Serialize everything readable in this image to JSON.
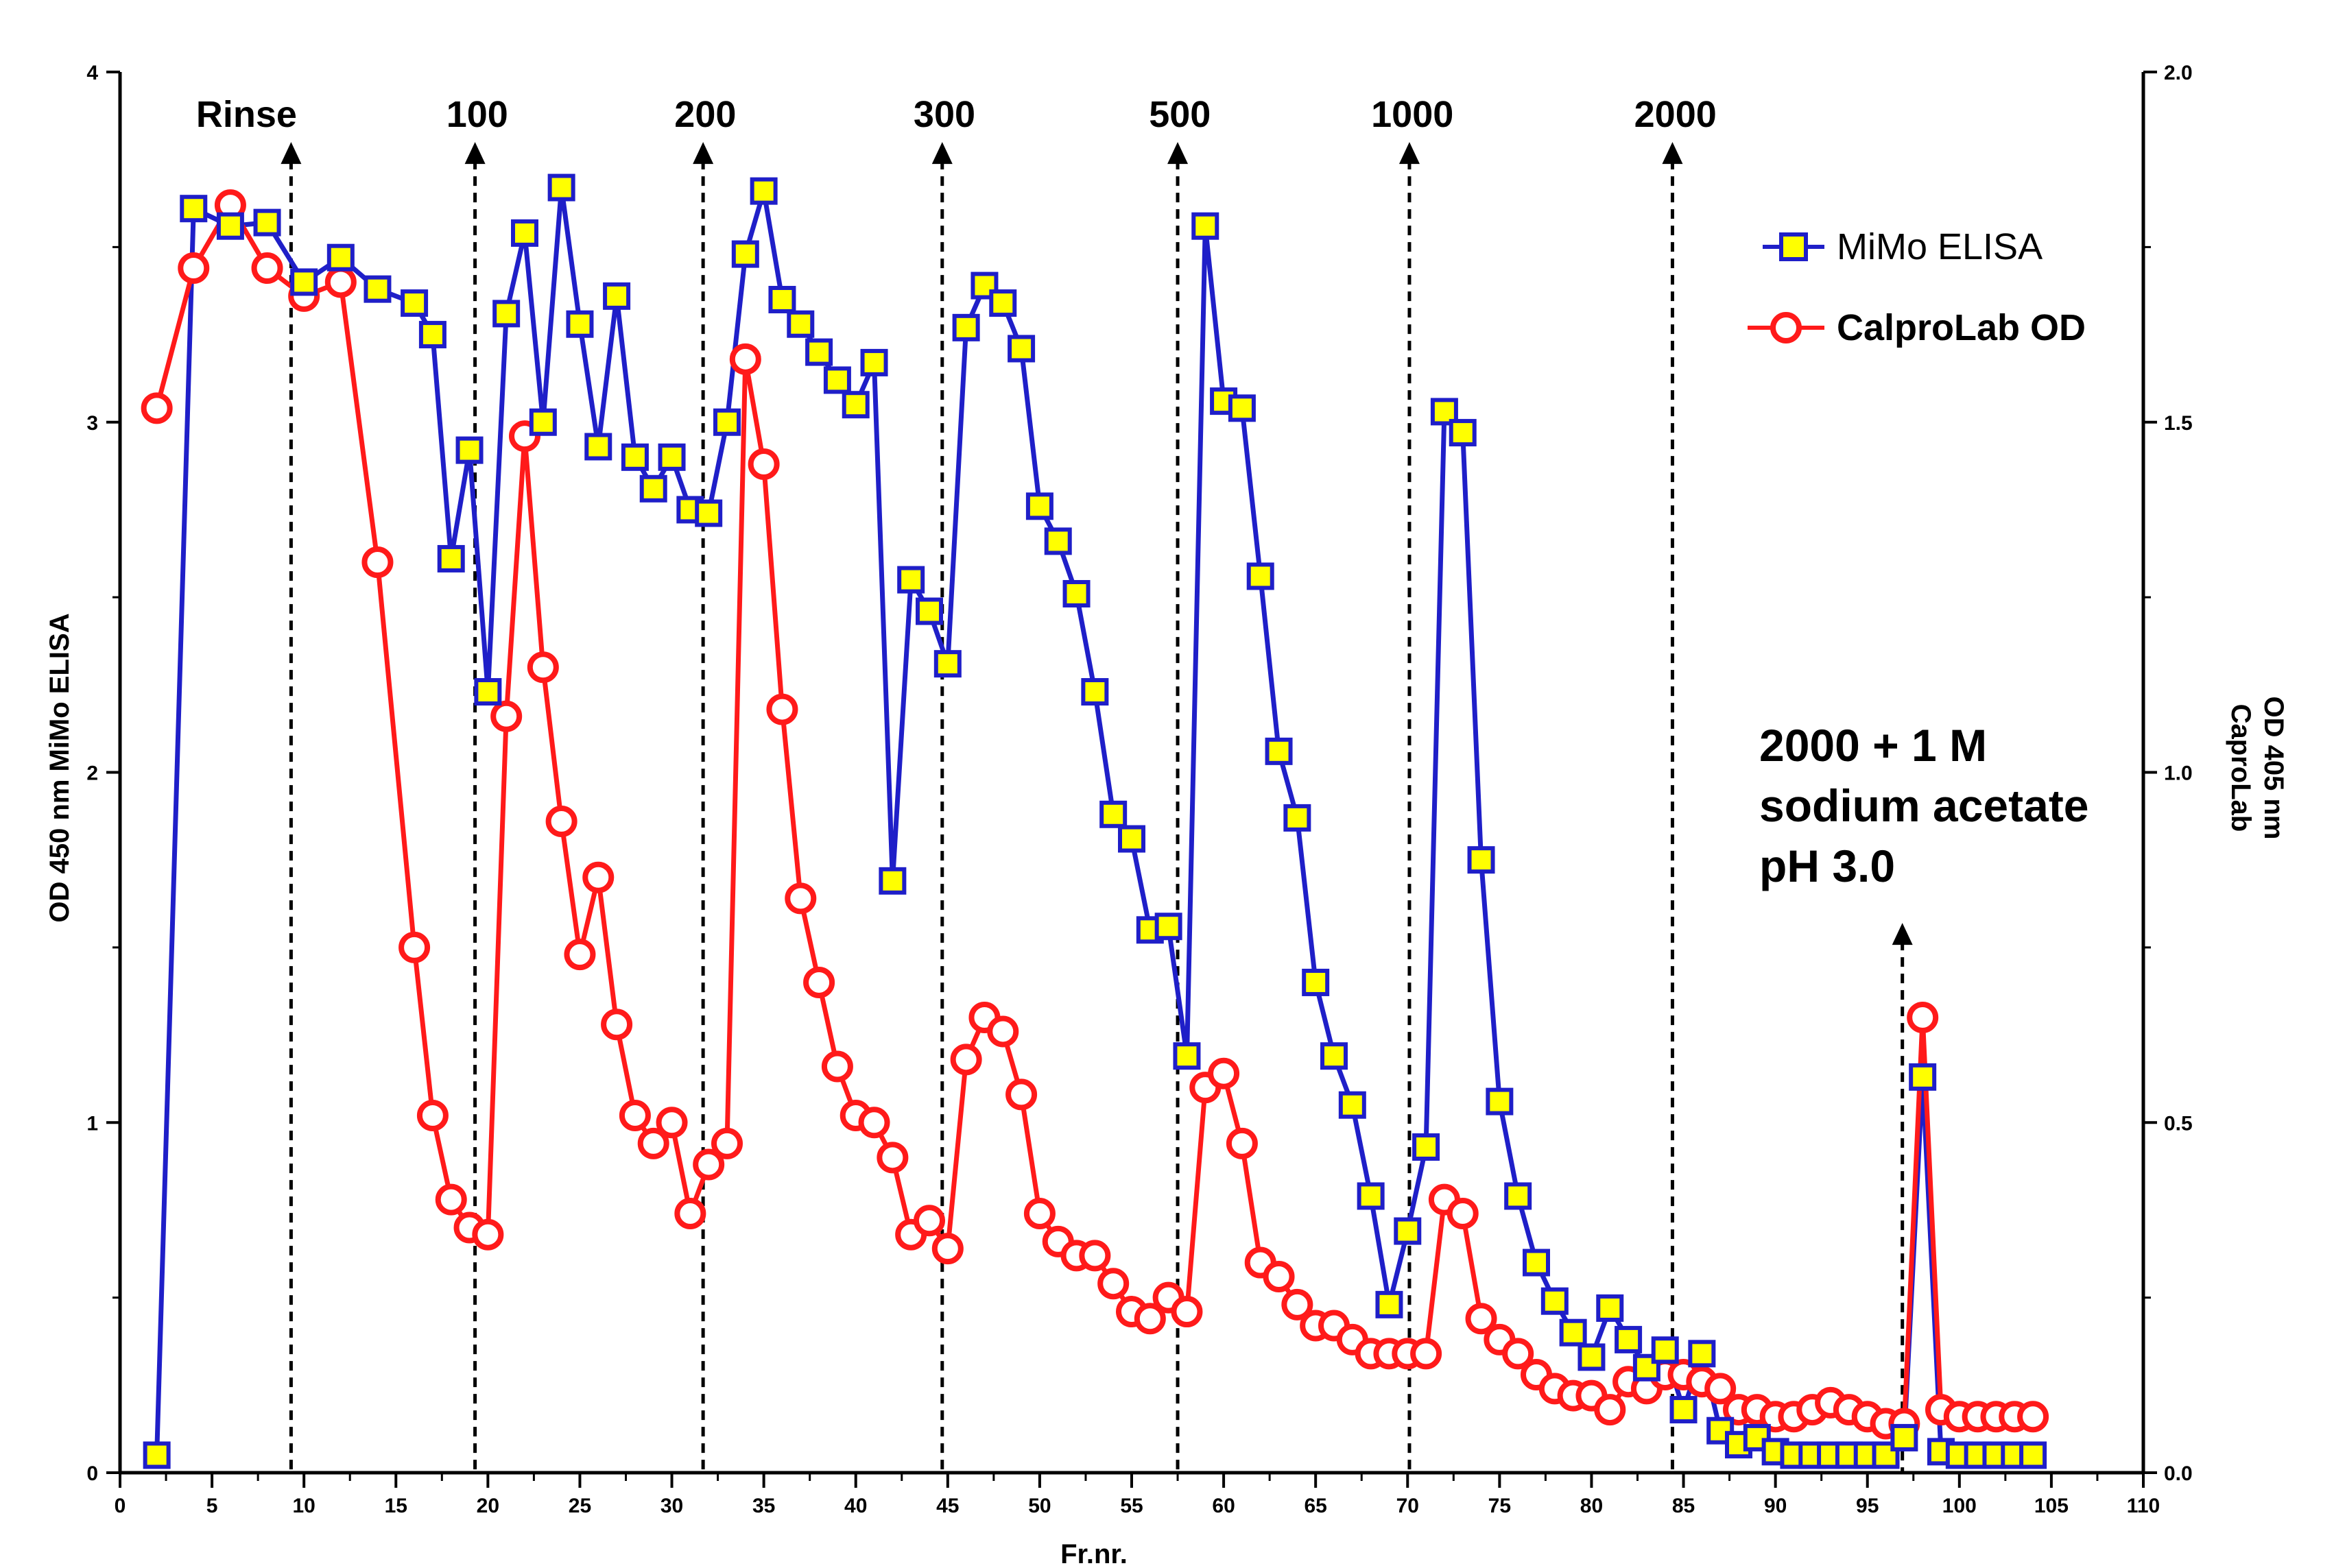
{
  "chart_data": {
    "type": "line",
    "xlabel": "Fr.nr.",
    "ylabel_left": "OD 450 nm MiMo ELISA",
    "ylabel_right_line1": "OD 405 nm",
    "ylabel_right_line2": "CaproLab",
    "xlim": [
      0,
      110
    ],
    "ylim_left": [
      0,
      4
    ],
    "ylim_right": [
      0,
      2
    ],
    "x_ticks": [
      "0",
      "5",
      "10",
      "15",
      "20",
      "25",
      "30",
      "35",
      "40",
      "45",
      "50",
      "55",
      "60",
      "65",
      "70",
      "75",
      "80",
      "85",
      "90",
      "95",
      "100",
      "105",
      "110"
    ],
    "y_left_ticks": [
      "0",
      "1",
      "2",
      "3",
      "4"
    ],
    "y_right_ticks": [
      "0.0",
      "0.5",
      "1.0",
      "1.5",
      "2.0"
    ],
    "series": [
      {
        "name": "MiMo ELISA",
        "axis": "left",
        "color": "#1f1fc8",
        "marker": "square",
        "marker_fill": "#ffff00",
        "points": [
          [
            2,
            0.05
          ],
          [
            4,
            3.61
          ],
          [
            6,
            3.56
          ],
          [
            8,
            3.57
          ],
          [
            10,
            3.4
          ],
          [
            12,
            3.47
          ],
          [
            14,
            3.38
          ],
          [
            16,
            3.34
          ],
          [
            17,
            3.25
          ],
          [
            18,
            2.61
          ],
          [
            19,
            2.92
          ],
          [
            20,
            2.23
          ],
          [
            21,
            3.31
          ],
          [
            22,
            3.54
          ],
          [
            23,
            3.0
          ],
          [
            24,
            3.67
          ],
          [
            25,
            3.28
          ],
          [
            26,
            2.93
          ],
          [
            27,
            3.36
          ],
          [
            28,
            2.9
          ],
          [
            29,
            2.81
          ],
          [
            30,
            2.9
          ],
          [
            31,
            2.75
          ],
          [
            32,
            2.74
          ],
          [
            33,
            3.0
          ],
          [
            34,
            3.48
          ],
          [
            35,
            3.66
          ],
          [
            36,
            3.35
          ],
          [
            37,
            3.28
          ],
          [
            38,
            3.2
          ],
          [
            39,
            3.12
          ],
          [
            40,
            3.05
          ],
          [
            41,
            3.17
          ],
          [
            42,
            1.69
          ],
          [
            43,
            2.55
          ],
          [
            44,
            2.46
          ],
          [
            45,
            2.31
          ],
          [
            46,
            3.27
          ],
          [
            47,
            3.39
          ],
          [
            48,
            3.34
          ],
          [
            49,
            3.21
          ],
          [
            50,
            2.76
          ],
          [
            51,
            2.66
          ],
          [
            52,
            2.51
          ],
          [
            53,
            2.23
          ],
          [
            54,
            1.88
          ],
          [
            55,
            1.81
          ],
          [
            56,
            1.55
          ],
          [
            57,
            1.56
          ],
          [
            58,
            1.19
          ],
          [
            59,
            3.56
          ],
          [
            60,
            3.06
          ],
          [
            61,
            3.04
          ],
          [
            62,
            2.56
          ],
          [
            63,
            2.06
          ],
          [
            64,
            1.87
          ],
          [
            65,
            1.4
          ],
          [
            66,
            1.19
          ],
          [
            67,
            1.05
          ],
          [
            68,
            0.79
          ],
          [
            69,
            0.48
          ],
          [
            70,
            0.69
          ],
          [
            71,
            0.93
          ],
          [
            72,
            3.03
          ],
          [
            73,
            2.97
          ],
          [
            74,
            1.75
          ],
          [
            75,
            1.06
          ],
          [
            76,
            0.79
          ],
          [
            77,
            0.6
          ],
          [
            78,
            0.49
          ],
          [
            79,
            0.4
          ],
          [
            80,
            0.33
          ],
          [
            81,
            0.47
          ],
          [
            82,
            0.38
          ],
          [
            83,
            0.3
          ],
          [
            84,
            0.35
          ],
          [
            85,
            0.18
          ],
          [
            86,
            0.34
          ],
          [
            87,
            0.12
          ],
          [
            88,
            0.08
          ],
          [
            89,
            0.1
          ],
          [
            90,
            0.06
          ],
          [
            91,
            0.05
          ],
          [
            92,
            0.05
          ],
          [
            93,
            0.05
          ],
          [
            94,
            0.05
          ],
          [
            95,
            0.05
          ],
          [
            96,
            0.05
          ],
          [
            97,
            0.1
          ],
          [
            98,
            1.13
          ],
          [
            99,
            0.06
          ],
          [
            100,
            0.05
          ],
          [
            101,
            0.05
          ],
          [
            102,
            0.05
          ],
          [
            103,
            0.05
          ],
          [
            104,
            0.05
          ]
        ]
      },
      {
        "name": "CalproLab OD",
        "axis": "right",
        "color": "#ff1a1a",
        "marker": "circle",
        "marker_fill": "#ffffff",
        "points": [
          [
            2,
            1.52
          ],
          [
            4,
            1.72
          ],
          [
            6,
            1.81
          ],
          [
            8,
            1.72
          ],
          [
            10,
            1.68
          ],
          [
            12,
            1.7
          ],
          [
            14,
            1.3
          ],
          [
            16,
            0.75
          ],
          [
            17,
            0.51
          ],
          [
            18,
            0.39
          ],
          [
            19,
            0.35
          ],
          [
            20,
            0.34
          ],
          [
            21,
            1.08
          ],
          [
            22,
            1.48
          ],
          [
            23,
            1.15
          ],
          [
            24,
            0.93
          ],
          [
            25,
            0.74
          ],
          [
            26,
            0.85
          ],
          [
            27,
            0.64
          ],
          [
            28,
            0.51
          ],
          [
            29,
            0.47
          ],
          [
            30,
            0.5
          ],
          [
            31,
            0.37
          ],
          [
            32,
            0.44
          ],
          [
            33,
            0.47
          ],
          [
            34,
            1.59
          ],
          [
            35,
            1.44
          ],
          [
            36,
            1.09
          ],
          [
            37,
            0.82
          ],
          [
            38,
            0.7
          ],
          [
            39,
            0.58
          ],
          [
            40,
            0.51
          ],
          [
            41,
            0.5
          ],
          [
            42,
            0.45
          ],
          [
            43,
            0.34
          ],
          [
            44,
            0.36
          ],
          [
            45,
            0.32
          ],
          [
            46,
            0.59
          ],
          [
            47,
            0.65
          ],
          [
            48,
            0.63
          ],
          [
            49,
            0.54
          ],
          [
            50,
            0.37
          ],
          [
            51,
            0.33
          ],
          [
            52,
            0.31
          ],
          [
            53,
            0.31
          ],
          [
            54,
            0.27
          ],
          [
            55,
            0.23
          ],
          [
            56,
            0.22
          ],
          [
            57,
            0.25
          ],
          [
            58,
            0.23
          ],
          [
            59,
            0.55
          ],
          [
            60,
            0.57
          ],
          [
            61,
            0.47
          ],
          [
            62,
            0.3
          ],
          [
            63,
            0.28
          ],
          [
            64,
            0.24
          ],
          [
            65,
            0.21
          ],
          [
            66,
            0.21
          ],
          [
            67,
            0.19
          ],
          [
            68,
            0.17
          ],
          [
            69,
            0.17
          ],
          [
            70,
            0.17
          ],
          [
            71,
            0.17
          ],
          [
            72,
            0.39
          ],
          [
            73,
            0.37
          ],
          [
            74,
            0.22
          ],
          [
            75,
            0.19
          ],
          [
            76,
            0.17
          ],
          [
            77,
            0.14
          ],
          [
            78,
            0.12
          ],
          [
            79,
            0.11
          ],
          [
            80,
            0.11
          ],
          [
            81,
            0.09
          ],
          [
            82,
            0.13
          ],
          [
            83,
            0.12
          ],
          [
            84,
            0.14
          ],
          [
            85,
            0.14
          ],
          [
            86,
            0.13
          ],
          [
            87,
            0.12
          ],
          [
            88,
            0.09
          ],
          [
            89,
            0.09
          ],
          [
            90,
            0.08
          ],
          [
            91,
            0.08
          ],
          [
            92,
            0.09
          ],
          [
            93,
            0.1
          ],
          [
            94,
            0.09
          ],
          [
            95,
            0.08
          ],
          [
            96,
            0.07
          ],
          [
            97,
            0.07
          ],
          [
            98,
            0.65
          ],
          [
            99,
            0.09
          ],
          [
            100,
            0.08
          ],
          [
            101,
            0.08
          ],
          [
            102,
            0.08
          ],
          [
            103,
            0.08
          ],
          [
            104,
            0.08
          ]
        ]
      }
    ],
    "annotations": [
      {
        "label": "Rinse",
        "x": 9.3,
        "y_top": 3.8,
        "y_bottom": 0
      },
      {
        "label": "100",
        "x": 19.3,
        "y_top": 3.8,
        "y_bottom": 0
      },
      {
        "label": "200",
        "x": 31.7,
        "y_top": 3.8,
        "y_bottom": 0
      },
      {
        "label": "300",
        "x": 44.7,
        "y_top": 3.8,
        "y_bottom": 0
      },
      {
        "label": "500",
        "x": 57.5,
        "y_top": 3.8,
        "y_bottom": 0
      },
      {
        "label": "1000",
        "x": 70.1,
        "y_top": 3.8,
        "y_bottom": 0
      },
      {
        "label": "2000",
        "x": 84.4,
        "y_top": 3.8,
        "y_bottom": 0
      },
      {
        "label": "",
        "x": 96.9,
        "y_top": 1.57,
        "y_bottom": 0
      }
    ],
    "big_label_lines": [
      "2000 + 1 M",
      "sodium acetate",
      "pH 3.0"
    ],
    "legend": [
      {
        "text": "MiMo ELISA",
        "series": 0
      },
      {
        "text": "CalproLab OD",
        "series": 1
      }
    ]
  }
}
